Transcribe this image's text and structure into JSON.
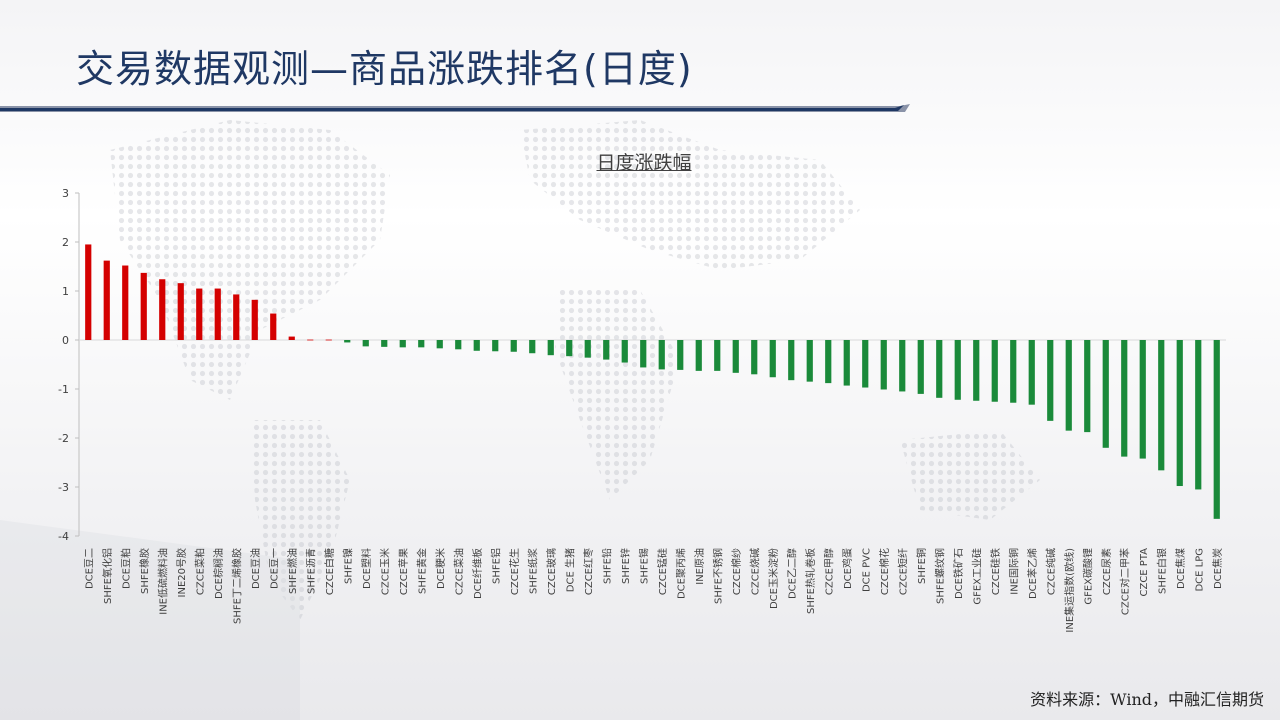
{
  "header": {
    "title": "交易数据观测—商品涨跌排名(日度)"
  },
  "footer": {
    "source": "资料来源：Wind，中融汇信期货"
  },
  "colors": {
    "title": "#1f3864",
    "accent_line": "#1f3864",
    "up": "#d40000",
    "down": "#1a8a3a"
  },
  "chart_data": {
    "type": "bar",
    "title": "日度涨跌幅",
    "xlabel": "",
    "ylabel": "",
    "ylim": [
      -4,
      3
    ],
    "yticks": [
      3,
      2,
      1,
      0,
      -1,
      -2,
      -3,
      -4
    ],
    "grid": false,
    "legend": "none",
    "categories": [
      "DCE豆二",
      "SHFE氧化铝",
      "DCE豆粕",
      "SHFE橡胶",
      "INE低硫燃料油",
      "INE20号胶",
      "CZCE菜粕",
      "DCE棕榈油",
      "SHFE丁二烯橡胶",
      "DCE豆油",
      "DCE豆一",
      "SHFE燃油",
      "SHFE沥青",
      "CZCE白糖",
      "SHFE镍",
      "DCE塑料",
      "CZCE玉米",
      "CZCE苹果",
      "SHFE黄金",
      "DCE粳米",
      "CZCE菜油",
      "DCE纤维板",
      "SHFE铝",
      "CZCE花生",
      "SHFE纸浆",
      "CZCE玻璃",
      "DCE 生猪",
      "CZCE红枣",
      "SHFE铅",
      "SHFE锌",
      "SHFE锡",
      "CZCE锰硅",
      "DCE聚丙烯",
      "INE原油",
      "SHFE不锈钢",
      "CZCE棉纱",
      "CZCE烧碱",
      "DCE玉米淀粉",
      "DCE乙二醇",
      "SHFE热轧卷板",
      "CZCE甲醇",
      "DCE鸡蛋",
      "DCE PVC",
      "CZCE棉花",
      "CZCE短纤",
      "SHFE铜",
      "SHFE螺纹钢",
      "DCE铁矿石",
      "GFEX工业硅",
      "CZCE硅铁",
      "INE国际铜",
      "DCE苯乙烯",
      "CZCE纯碱",
      "INE集运指数(欧线)",
      "GFEX碳酸锂",
      "CZCE尿素",
      "CZCE对二甲苯",
      "CZCE PTA",
      "SHFE白银",
      "DCE焦煤",
      "DCE LPG",
      "DCE焦炭"
    ],
    "values": [
      1.95,
      1.62,
      1.52,
      1.37,
      1.24,
      1.16,
      1.05,
      1.05,
      0.93,
      0.82,
      0.54,
      0.07,
      0.0,
      0.0,
      -0.05,
      -0.13,
      -0.14,
      -0.15,
      -0.15,
      -0.17,
      -0.19,
      -0.22,
      -0.23,
      -0.24,
      -0.27,
      -0.31,
      -0.33,
      -0.36,
      -0.4,
      -0.46,
      -0.56,
      -0.6,
      -0.61,
      -0.63,
      -0.63,
      -0.67,
      -0.7,
      -0.76,
      -0.82,
      -0.85,
      -0.88,
      -0.93,
      -0.97,
      -1.01,
      -1.05,
      -1.1,
      -1.18,
      -1.22,
      -1.24,
      -1.26,
      -1.28,
      -1.32,
      -1.65,
      -1.85,
      -1.88,
      -2.2,
      -2.38,
      -2.42,
      -2.66,
      -2.98,
      -3.05,
      -3.65
    ]
  }
}
